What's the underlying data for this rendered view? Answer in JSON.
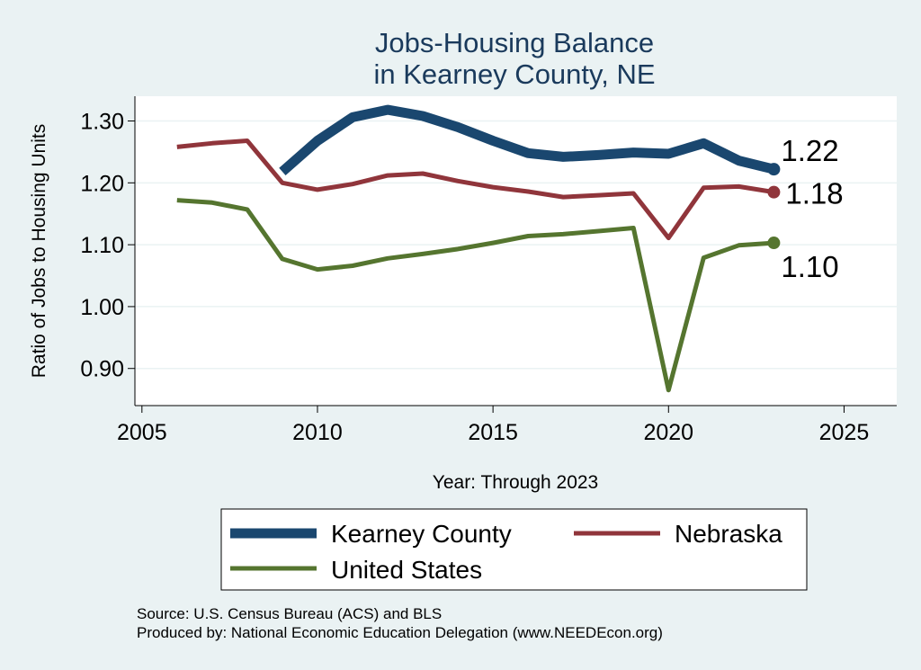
{
  "chart_data": {
    "type": "line",
    "title": [
      "Jobs-Housing Balance",
      "in Kearney County, NE"
    ],
    "xlabel": "Year: Through 2023",
    "ylabel": "Ratio of Jobs to Housing Units",
    "xlim": [
      2004.8,
      2026.5
    ],
    "ylim": [
      0.84,
      1.34
    ],
    "x_ticks": [
      2005,
      2010,
      2015,
      2020,
      2025
    ],
    "y_ticks": [
      0.9,
      1.0,
      1.1,
      1.2,
      1.3
    ],
    "y_tick_labels": [
      "0.90",
      "1.00",
      "1.10",
      "1.20",
      "1.30"
    ],
    "grid": true,
    "legend_position": "bottom",
    "series": [
      {
        "name": "Kearney County",
        "color": "#1a476f",
        "line_width": 11,
        "end_label": "1.22",
        "points": [
          [
            2009,
            1.218
          ],
          [
            2010,
            1.268
          ],
          [
            2011,
            1.306
          ],
          [
            2012,
            1.318
          ],
          [
            2013,
            1.308
          ],
          [
            2014,
            1.29
          ],
          [
            2015,
            1.268
          ],
          [
            2016,
            1.248
          ],
          [
            2017,
            1.242
          ],
          [
            2018,
            1.245
          ],
          [
            2019,
            1.249
          ],
          [
            2020,
            1.247
          ],
          [
            2021,
            1.264
          ],
          [
            2022,
            1.236
          ],
          [
            2023,
            1.222
          ]
        ]
      },
      {
        "name": "Nebraska",
        "color": "#90353b",
        "line_width": 5,
        "end_label": "1.18",
        "points": [
          [
            2006,
            1.258
          ],
          [
            2007,
            1.264
          ],
          [
            2008,
            1.268
          ],
          [
            2009,
            1.2
          ],
          [
            2010,
            1.189
          ],
          [
            2011,
            1.198
          ],
          [
            2012,
            1.212
          ],
          [
            2013,
            1.215
          ],
          [
            2014,
            1.203
          ],
          [
            2015,
            1.193
          ],
          [
            2016,
            1.186
          ],
          [
            2017,
            1.177
          ],
          [
            2018,
            1.18
          ],
          [
            2019,
            1.183
          ],
          [
            2020,
            1.111
          ],
          [
            2021,
            1.192
          ],
          [
            2022,
            1.194
          ],
          [
            2023,
            1.185
          ]
        ]
      },
      {
        "name": "United States",
        "color": "#55752f",
        "line_width": 5,
        "end_label": "1.10",
        "points": [
          [
            2006,
            1.172
          ],
          [
            2007,
            1.168
          ],
          [
            2008,
            1.157
          ],
          [
            2009,
            1.077
          ],
          [
            2010,
            1.06
          ],
          [
            2011,
            1.066
          ],
          [
            2012,
            1.078
          ],
          [
            2013,
            1.085
          ],
          [
            2014,
            1.093
          ],
          [
            2015,
            1.103
          ],
          [
            2016,
            1.114
          ],
          [
            2017,
            1.117
          ],
          [
            2018,
            1.122
          ],
          [
            2019,
            1.127
          ],
          [
            2020,
            0.865
          ],
          [
            2021,
            1.079
          ],
          [
            2022,
            1.099
          ],
          [
            2023,
            1.103
          ]
        ]
      }
    ],
    "source_lines": [
      "Source: U.S. Census Bureau (ACS) and BLS",
      "Produced by: National Economic Education Delegation (www.NEEDEcon.org)"
    ]
  }
}
